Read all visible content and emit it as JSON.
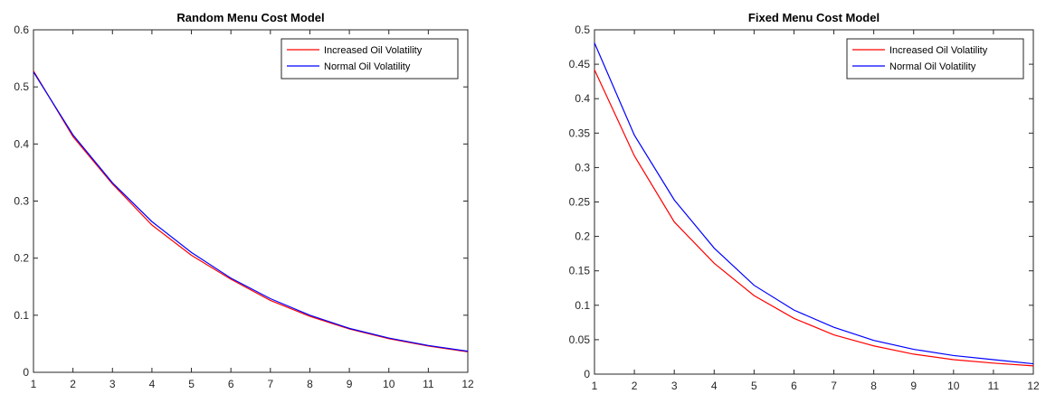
{
  "chart_data": [
    {
      "type": "line",
      "title": "Random Menu Cost Model",
      "xlabel": "",
      "ylabel": "",
      "x": [
        1,
        2,
        3,
        4,
        5,
        6,
        7,
        8,
        9,
        10,
        11,
        12
      ],
      "xlim": [
        1,
        12
      ],
      "ylim": [
        0,
        0.6
      ],
      "xticks": [
        "1",
        "2",
        "3",
        "4",
        "5",
        "6",
        "7",
        "8",
        "9",
        "10",
        "11",
        "12"
      ],
      "yticks": [
        "0",
        "0.1",
        "0.2",
        "0.3",
        "0.4",
        "0.5",
        "0.6"
      ],
      "legend_position": "top-right",
      "series": [
        {
          "name": "Increased Oil Volatility",
          "color": "#ff0000",
          "values": [
            0.528,
            0.413,
            0.33,
            0.258,
            0.205,
            0.163,
            0.126,
            0.098,
            0.076,
            0.059,
            0.046,
            0.036
          ]
        },
        {
          "name": "Normal Oil Volatility",
          "color": "#0000ff",
          "values": [
            0.526,
            0.416,
            0.332,
            0.264,
            0.21,
            0.165,
            0.129,
            0.1,
            0.077,
            0.06,
            0.047,
            0.037
          ]
        }
      ]
    },
    {
      "type": "line",
      "title": "Fixed Menu Cost Model",
      "xlabel": "",
      "ylabel": "",
      "x": [
        1,
        2,
        3,
        4,
        5,
        6,
        7,
        8,
        9,
        10,
        11,
        12
      ],
      "xlim": [
        1,
        12
      ],
      "ylim": [
        0,
        0.5
      ],
      "xticks": [
        "1",
        "2",
        "3",
        "4",
        "5",
        "6",
        "7",
        "8",
        "9",
        "10",
        "11",
        "12"
      ],
      "yticks": [
        "0",
        "0.05",
        "0.1",
        "0.15",
        "0.2",
        "0.25",
        "0.3",
        "0.35",
        "0.4",
        "0.45",
        "0.5"
      ],
      "legend_position": "top-right",
      "series": [
        {
          "name": "Increased Oil Volatility",
          "color": "#ff0000",
          "values": [
            0.442,
            0.317,
            0.221,
            0.161,
            0.114,
            0.081,
            0.057,
            0.041,
            0.029,
            0.021,
            0.016,
            0.012
          ]
        },
        {
          "name": "Normal Oil Volatility",
          "color": "#0000ff",
          "values": [
            0.481,
            0.347,
            0.253,
            0.183,
            0.129,
            0.093,
            0.068,
            0.049,
            0.036,
            0.027,
            0.021,
            0.015
          ]
        }
      ]
    }
  ]
}
